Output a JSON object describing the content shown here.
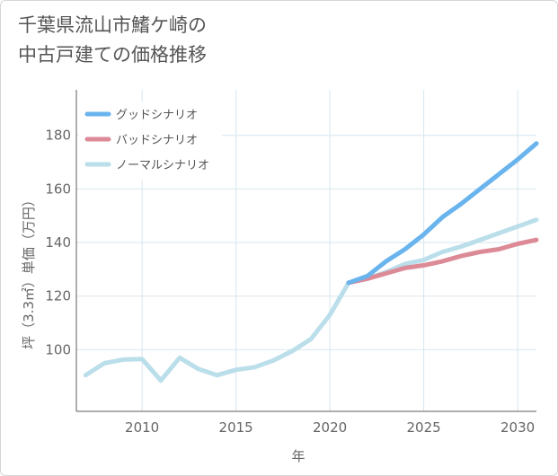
{
  "chart_data": {
    "type": "line",
    "title": [
      "千葉県流山市鰭ケ崎の",
      "中古戸建ての価格推移"
    ],
    "xlabel": "年",
    "ylabel": "坪（3.3㎡）単価（万円）",
    "xlim": [
      2006.5,
      2031
    ],
    "ylim": [
      77,
      197
    ],
    "xticks": [
      2010,
      2015,
      2020,
      2025,
      2030
    ],
    "yticks": [
      100,
      120,
      140,
      160,
      180
    ],
    "grid": true,
    "legend_position": "top-left",
    "series": [
      {
        "name": "グッドシナリオ",
        "color": "#6ab4ee",
        "x": [
          2021,
          2022,
          2023,
          2024,
          2025,
          2026,
          2027,
          2028,
          2029,
          2030,
          2031
        ],
        "values": [
          125,
          127.5,
          133,
          137.5,
          143,
          149.5,
          154.5,
          160,
          165.5,
          171,
          177
        ]
      },
      {
        "name": "バッドシナリオ",
        "color": "#dd8a97",
        "x": [
          2021,
          2022,
          2023,
          2024,
          2025,
          2026,
          2027,
          2028,
          2029,
          2030,
          2031
        ],
        "values": [
          125,
          126.5,
          128.5,
          130.5,
          131.5,
          133,
          135,
          136.5,
          137.5,
          139.5,
          141
        ]
      },
      {
        "name": "ノーマルシナリオ",
        "color": "#badeea",
        "x": [
          2007,
          2008,
          2009,
          2010,
          2011,
          2012,
          2013,
          2014,
          2015,
          2016,
          2017,
          2018,
          2019,
          2020,
          2021,
          2022,
          2023,
          2024,
          2025,
          2026,
          2027,
          2028,
          2029,
          2030,
          2031
        ],
        "values": [
          90.5,
          95,
          96.3,
          96.5,
          88.5,
          97,
          92.8,
          90.5,
          92.5,
          93.5,
          96,
          99.5,
          104,
          113,
          125,
          126.5,
          129,
          132,
          133.5,
          136.5,
          138.5,
          141,
          143.5,
          146,
          148.5
        ]
      }
    ]
  }
}
